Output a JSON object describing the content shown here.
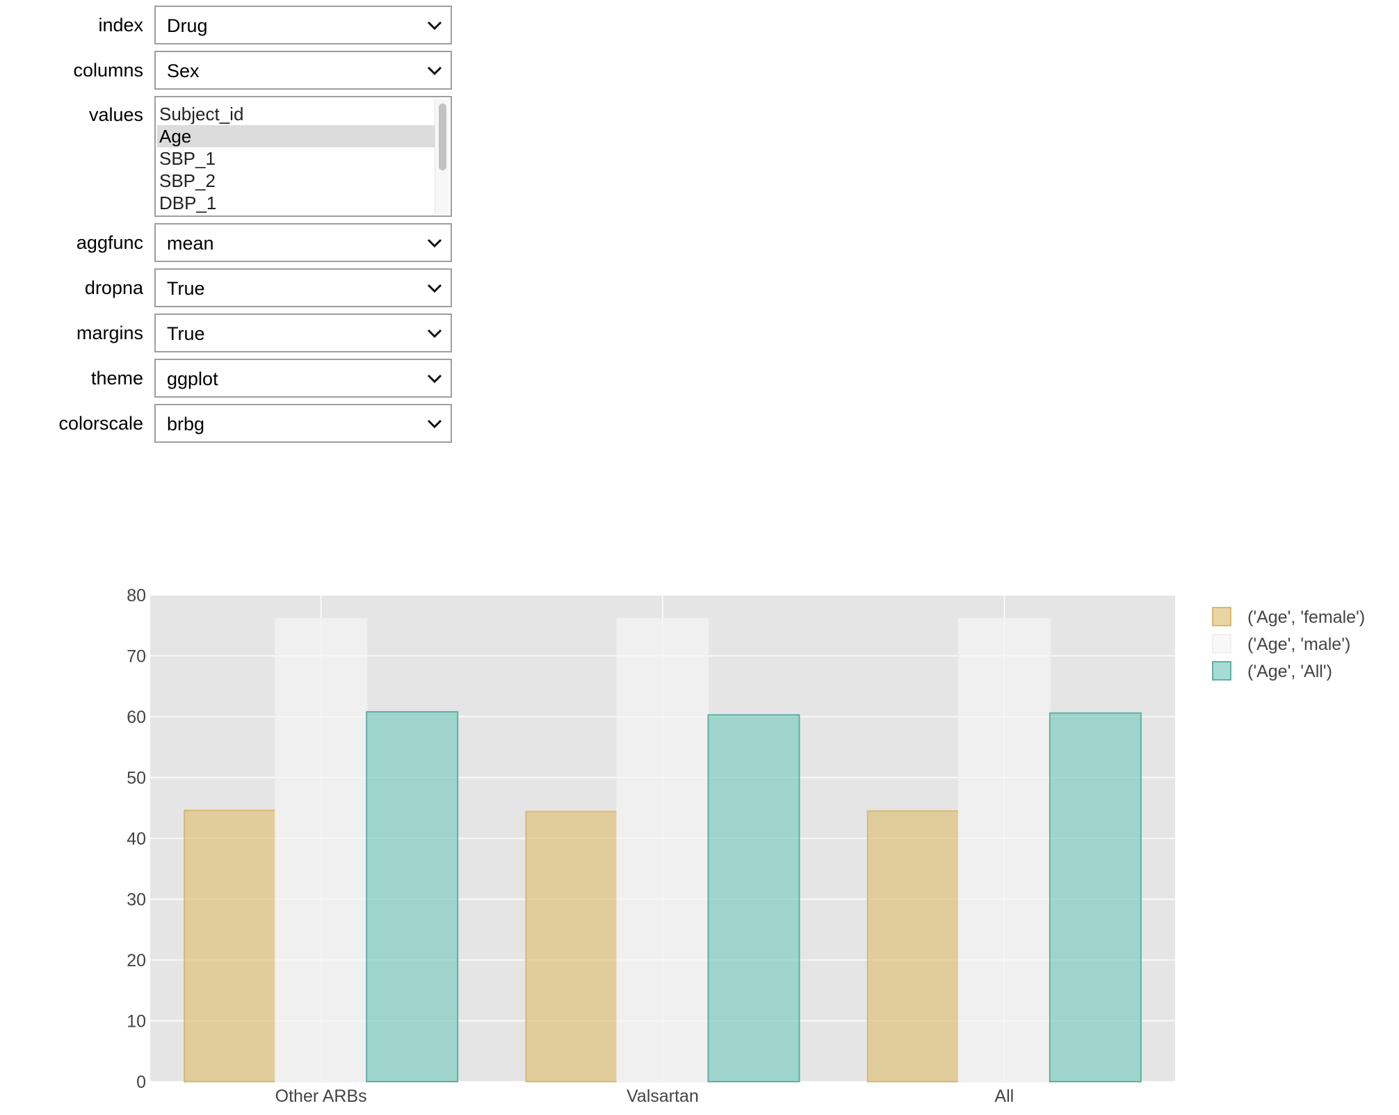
{
  "controls": {
    "index": {
      "label": "index",
      "value": "Drug"
    },
    "columns": {
      "label": "columns",
      "value": "Sex"
    },
    "values": {
      "label": "values",
      "options": [
        "Subject_id",
        "Age",
        "SBP_1",
        "SBP_2",
        "DBP_1"
      ],
      "selected": "Age"
    },
    "aggfunc": {
      "label": "aggfunc",
      "value": "mean"
    },
    "dropna": {
      "label": "dropna",
      "value": "True"
    },
    "margins": {
      "label": "margins",
      "value": "True"
    },
    "theme": {
      "label": "theme",
      "value": "ggplot"
    },
    "colorscale": {
      "label": "colorscale",
      "value": "brbg"
    }
  },
  "colors": {
    "plot_bg": "#e5e5e5",
    "grid": "#ffffff",
    "axis_text": "#444444",
    "female_fill": "#dfc27d",
    "female_line": "#d9b96e",
    "male_fill": "#f5f5f5",
    "male_line": "#f0f0f0",
    "all_fill": "#80cdc1",
    "all_line": "#5fb0a4"
  },
  "chart_data": {
    "type": "bar",
    "categories": [
      "Other ARBs",
      "Valsartan",
      "All"
    ],
    "series": [
      {
        "name": "('Age', 'female')",
        "values": [
          44.6,
          44.4,
          44.5
        ],
        "color_key": "female"
      },
      {
        "name": "('Age', 'male')",
        "values": [
          76.1,
          76.1,
          76.1
        ],
        "color_key": "male"
      },
      {
        "name": "('Age', 'All')",
        "values": [
          60.8,
          60.3,
          60.6
        ],
        "color_key": "all"
      }
    ],
    "yticks": [
      0,
      10,
      20,
      30,
      40,
      50,
      60,
      70,
      80
    ],
    "ylim": [
      0,
      80
    ],
    "grid": true,
    "legend_position": "top-right",
    "title": "",
    "xlabel": "",
    "ylabel": ""
  }
}
